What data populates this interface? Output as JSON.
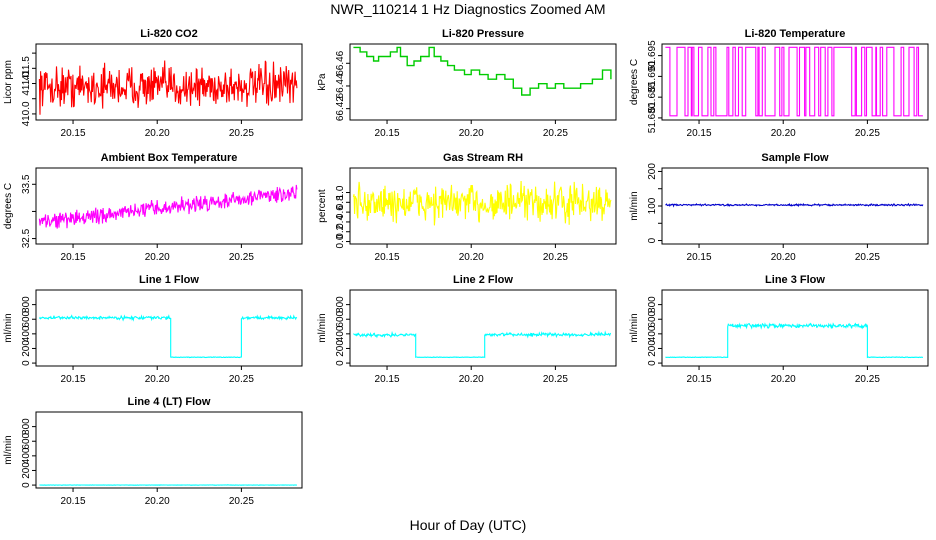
{
  "title": "NWR_110214  1 Hz Diagnostics Zoomed AM",
  "x_axis_title": "Hour of Day (UTC)",
  "chart_data": [
    {
      "name": "li820-co2",
      "type": "line",
      "title": "Li-820 CO2",
      "ylabel": "Licor ppm",
      "color": "#ff0000",
      "xlim": [
        20.128,
        20.286
      ],
      "ylim": [
        409.8,
        412.3
      ],
      "yticks": [
        410.0,
        410.5,
        411.0,
        411.5,
        412.0
      ],
      "yticklabels": [
        "410.0",
        "",
        "411.0",
        "411.5",
        ""
      ],
      "xticks": [
        20.15,
        20.2,
        20.25
      ],
      "xticklabels": [
        "20.15",
        "20.20",
        "20.25"
      ],
      "series": [
        {
          "kind": "noise",
          "from": 20.13,
          "to": 20.283,
          "mean": 410.9,
          "spread": 0.55
        }
      ]
    },
    {
      "name": "li820-pressure",
      "type": "step",
      "title": "Li-820 Pressure",
      "ylabel": "kPa",
      "color": "#00cc00",
      "xlim": [
        20.128,
        20.286
      ],
      "ylim": [
        66.41,
        66.477
      ],
      "yticks": [
        66.42,
        66.44,
        66.46
      ],
      "yticklabels": [
        "66.42",
        "66.44",
        "66.46"
      ],
      "xticks": [
        20.15,
        20.2,
        20.25
      ],
      "xticklabels": [
        "20.15",
        "20.20",
        "20.25"
      ],
      "series": [
        {
          "kind": "steps",
          "points": [
            [
              20.13,
              66.474
            ],
            [
              20.134,
              66.47
            ],
            [
              20.138,
              66.466
            ],
            [
              20.142,
              66.462
            ],
            [
              20.145,
              66.466
            ],
            [
              20.15,
              66.466
            ],
            [
              20.152,
              66.47
            ],
            [
              20.156,
              66.474
            ],
            [
              20.158,
              66.466
            ],
            [
              20.162,
              66.458
            ],
            [
              20.166,
              66.462
            ],
            [
              20.17,
              66.466
            ],
            [
              20.175,
              66.474
            ],
            [
              20.178,
              66.466
            ],
            [
              20.182,
              66.462
            ],
            [
              20.186,
              66.458
            ],
            [
              20.19,
              66.454
            ],
            [
              20.196,
              66.45
            ],
            [
              20.2,
              66.454
            ],
            [
              20.205,
              66.45
            ],
            [
              20.21,
              66.446
            ],
            [
              20.215,
              66.45
            ],
            [
              20.22,
              66.446
            ],
            [
              20.225,
              66.438
            ],
            [
              20.23,
              66.432
            ],
            [
              20.235,
              66.438
            ],
            [
              20.24,
              66.442
            ],
            [
              20.245,
              66.438
            ],
            [
              20.25,
              66.442
            ],
            [
              20.255,
              66.438
            ],
            [
              20.26,
              66.438
            ],
            [
              20.265,
              66.442
            ],
            [
              20.272,
              66.446
            ],
            [
              20.278,
              66.454
            ],
            [
              20.283,
              66.446
            ]
          ]
        }
      ]
    },
    {
      "name": "li820-temperature",
      "type": "line",
      "title": "Li-820 Temperature",
      "ylabel": "degrees C",
      "color": "#ff00ff",
      "xlim": [
        20.128,
        20.286
      ],
      "ylim": [
        51.6795,
        51.6978
      ],
      "yticks": [
        51.68,
        51.685,
        51.69,
        51.695
      ],
      "yticklabels": [
        "51.680",
        "51.685",
        "51.690",
        "51.695"
      ],
      "xticks": [
        20.15,
        20.2,
        20.25
      ],
      "xticklabels": [
        "20.15",
        "20.20",
        "20.25"
      ],
      "series": [
        {
          "kind": "binary",
          "from": 20.13,
          "to": 20.283,
          "low": 51.6805,
          "high": 51.697
        }
      ]
    },
    {
      "name": "ambient-box-temperature",
      "type": "line",
      "title": "Ambient Box Temperature",
      "ylabel": "degrees C",
      "color": "#ff00ff",
      "xlim": [
        20.128,
        20.286
      ],
      "ylim": [
        32.4,
        33.8
      ],
      "yticks": [
        32.5,
        33.0,
        33.5
      ],
      "yticklabels": [
        "32.5",
        "",
        "33.5"
      ],
      "xticks": [
        20.15,
        20.2,
        20.25
      ],
      "xticklabels": [
        "20.15",
        "20.20",
        "20.25"
      ],
      "series": [
        {
          "kind": "trend",
          "from": 20.13,
          "to": 20.283,
          "start": 32.8,
          "end": 33.35,
          "spread": 0.12
        }
      ]
    },
    {
      "name": "gas-stream-rh",
      "type": "line",
      "title": "Gas Stream RH",
      "ylabel": "percent",
      "color": "#ffff00",
      "xlim": [
        20.128,
        20.286
      ],
      "ylim": [
        -0.05,
        1.5
      ],
      "yticks": [
        0.0,
        0.2,
        0.4,
        0.6,
        0.8,
        1.0
      ],
      "yticklabels": [
        "0.0",
        "0.2",
        "0.4",
        "0.6",
        "0.8",
        "1.0"
      ],
      "xticks": [
        20.15,
        20.2,
        20.25
      ],
      "xticklabels": [
        "20.15",
        "20.20",
        "20.25"
      ],
      "series": [
        {
          "kind": "noise",
          "from": 20.13,
          "to": 20.283,
          "mean": 0.78,
          "spread": 0.32
        }
      ]
    },
    {
      "name": "sample-flow",
      "type": "line",
      "title": "Sample Flow",
      "ylabel": "ml/min",
      "color": "#0000cc",
      "xlim": [
        20.128,
        20.286
      ],
      "ylim": [
        -10,
        210
      ],
      "yticks": [
        0,
        50,
        100,
        150,
        200
      ],
      "yticklabels": [
        "0",
        "",
        "100",
        "",
        "200"
      ],
      "xticks": [
        20.15,
        20.2,
        20.25
      ],
      "xticklabels": [
        "20.15",
        "20.20",
        "20.25"
      ],
      "series": [
        {
          "kind": "noise",
          "from": 20.13,
          "to": 20.283,
          "mean": 103,
          "spread": 2
        }
      ]
    },
    {
      "name": "line1-flow",
      "type": "line",
      "title": "Line 1 Flow",
      "ylabel": "ml/min",
      "color": "#00ffff",
      "xlim": [
        20.128,
        20.286
      ],
      "ylim": [
        -40,
        1000
      ],
      "yticks": [
        0,
        200,
        400,
        600,
        800
      ],
      "yticklabels": [
        "0",
        "200",
        "400",
        "600",
        "800"
      ],
      "xticks": [
        20.15,
        20.2,
        20.25
      ],
      "xticklabels": [
        "20.15",
        "20.20",
        "20.25"
      ],
      "series": [
        {
          "kind": "noise",
          "from": 20.13,
          "to": 20.208,
          "mean": 620,
          "spread": 18
        },
        {
          "kind": "noise",
          "from": 20.208,
          "to": 20.25,
          "mean": 80,
          "spread": 3
        },
        {
          "kind": "noise",
          "from": 20.25,
          "to": 20.283,
          "mean": 620,
          "spread": 18
        }
      ]
    },
    {
      "name": "line2-flow",
      "type": "line",
      "title": "Line 2 Flow",
      "ylabel": "ml/min",
      "color": "#00ffff",
      "xlim": [
        20.128,
        20.286
      ],
      "ylim": [
        -40,
        1000
      ],
      "yticks": [
        0,
        200,
        400,
        600,
        800
      ],
      "yticklabels": [
        "0",
        "200",
        "400",
        "600",
        "800"
      ],
      "xticks": [
        20.15,
        20.2,
        20.25
      ],
      "xticklabels": [
        "20.15",
        "20.20",
        "20.25"
      ],
      "series": [
        {
          "kind": "noise",
          "from": 20.13,
          "to": 20.167,
          "mean": 385,
          "spread": 18
        },
        {
          "kind": "noise",
          "from": 20.167,
          "to": 20.208,
          "mean": 80,
          "spread": 3
        },
        {
          "kind": "noise",
          "from": 20.208,
          "to": 20.283,
          "mean": 390,
          "spread": 18
        }
      ]
    },
    {
      "name": "line3-flow",
      "type": "line",
      "title": "Line 3 Flow",
      "ylabel": "ml/min",
      "color": "#00ffff",
      "xlim": [
        20.128,
        20.286
      ],
      "ylim": [
        -40,
        1000
      ],
      "yticks": [
        0,
        200,
        400,
        600,
        800
      ],
      "yticklabels": [
        "0",
        "200",
        "400",
        "600",
        "800"
      ],
      "xticks": [
        20.15,
        20.2,
        20.25
      ],
      "xticklabels": [
        "20.15",
        "20.20",
        "20.25"
      ],
      "series": [
        {
          "kind": "noise",
          "from": 20.13,
          "to": 20.167,
          "mean": 80,
          "spread": 3
        },
        {
          "kind": "noise",
          "from": 20.167,
          "to": 20.25,
          "mean": 510,
          "spread": 22
        },
        {
          "kind": "noise",
          "from": 20.25,
          "to": 20.283,
          "mean": 80,
          "spread": 3
        }
      ]
    },
    {
      "name": "line4-lt-flow",
      "type": "line",
      "title": "Line 4 (LT) Flow",
      "ylabel": "ml/min",
      "color": "#00ffff",
      "xlim": [
        20.128,
        20.286
      ],
      "ylim": [
        -40,
        1000
      ],
      "yticks": [
        0,
        200,
        400,
        600,
        800
      ],
      "yticklabels": [
        "0",
        "200",
        "400",
        "600",
        "800"
      ],
      "xticks": [
        20.15,
        20.2,
        20.25
      ],
      "xticklabels": [
        "20.15",
        "20.20",
        "20.25"
      ],
      "series": [
        {
          "kind": "noise",
          "from": 20.13,
          "to": 20.283,
          "mean": 0,
          "spread": 2
        }
      ]
    }
  ]
}
